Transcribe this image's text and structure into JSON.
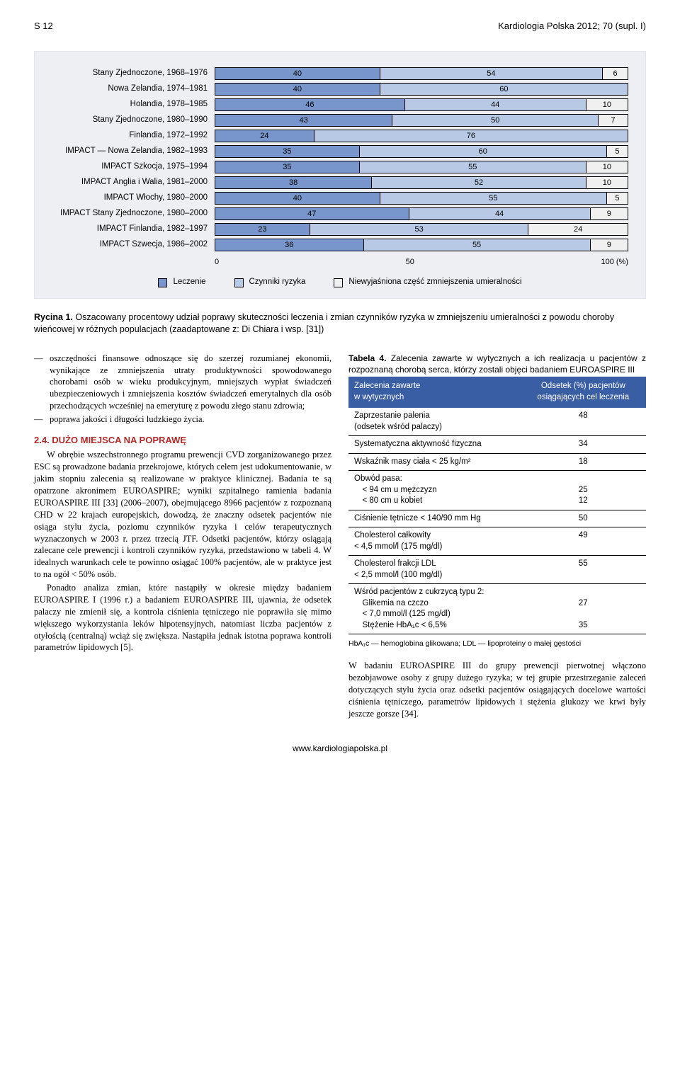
{
  "header": {
    "left": "S 12",
    "right": "Kardiologia Polska 2012; 70 (supl. I)"
  },
  "chart": {
    "type": "stacked-bar-horizontal",
    "background": "#edeff3",
    "bar_border": "#000000",
    "label_fontsize": 11.5,
    "value_fontsize": 11,
    "segment_colors": [
      "#7896cb",
      "#b8c9e6",
      "#f0f0f0"
    ],
    "rows": [
      {
        "label": "Stany Zjednoczone, 1968–1976",
        "values": [
          40,
          54,
          6
        ]
      },
      {
        "label": "Nowa Zelandia, 1974–1981",
        "values": [
          40,
          60
        ]
      },
      {
        "label": "Holandia, 1978–1985",
        "values": [
          46,
          44,
          10
        ]
      },
      {
        "label": "Stany Zjednoczone, 1980–1990",
        "values": [
          43,
          50,
          7
        ]
      },
      {
        "label": "Finlandia, 1972–1992",
        "values": [
          24,
          76
        ]
      },
      {
        "label": "IMPACT — Nowa Zelandia, 1982–1993",
        "values": [
          35,
          60,
          5
        ]
      },
      {
        "label": "IMPACT Szkocja, 1975–1994",
        "values": [
          35,
          55,
          10
        ]
      },
      {
        "label": "IMPACT Anglia i Walia, 1981–2000",
        "values": [
          38,
          52,
          10
        ]
      },
      {
        "label": "IMPACT Włochy, 1980–2000",
        "values": [
          40,
          55,
          5
        ]
      },
      {
        "label": "IMPACT Stany Zjednoczone, 1980–2000",
        "values": [
          47,
          44,
          9
        ]
      },
      {
        "label": "IMPACT Finlandia, 1982–1997",
        "values": [
          23,
          53,
          24
        ]
      },
      {
        "label": "IMPACT Szwecja, 1986–2002",
        "values": [
          36,
          55,
          9
        ]
      }
    ],
    "axis": {
      "ticks": [
        "0",
        "50",
        "100 (%)"
      ]
    },
    "legend": [
      {
        "label": "Leczenie",
        "color": "#7896cb"
      },
      {
        "label": "Czynniki ryzyka",
        "color": "#b8c9e6"
      },
      {
        "label": "Niewyjaśniona część zmniejszenia umieralności",
        "color": "#f0f0f0"
      }
    ]
  },
  "figure_caption": {
    "lead": "Rycina 1.",
    "text": "Oszacowany procentowy udział poprawy skuteczności leczenia i zmian czynników ryzyka w zmniejszeniu umieralności z powodu choroby wieńcowej w różnych populacjach (zaadaptowane z: Di Chiara i wsp. [31])"
  },
  "left_col": {
    "bullets": [
      "oszczędności finansowe odnoszące się do szerzej rozumianej ekonomii, wynikające ze zmniejszenia utraty produktywności spowodowanego chorobami osób w wieku produkcyjnym, mniejszych wypłat świadczeń ubezpieczeniowych i zmniejszenia kosztów świadczeń emerytalnych dla osób przechodzących wcześniej na emeryturę z powodu złego stanu zdrowia;",
      "poprawa jakości i długości ludzkiego życia."
    ],
    "section_heading": "2.4. DUŻO MIEJSCA NA POPRAWĘ",
    "p1": "W obrębie wszechstronnego programu prewencji CVD zorganizowanego przez ESC są prowadzone badania przekrojowe, których celem jest udokumentowanie, w jakim stopniu zalecenia są realizowane w praktyce klinicznej. Badania te są opatrzone akronimem EUROASPIRE; wyniki szpitalnego ramienia badania EUROASPIRE III [33] (2006–2007), obejmującego 8966 pacjentów z rozpoznaną CHD w 22 krajach europejskich, dowodzą, że znaczny odsetek pacjentów nie osiąga stylu życia, poziomu czynników ryzyka i celów terapeutycznych wyznaczonych w 2003 r. przez trzecią JTF. Odsetki pacjentów, którzy osiągają zalecane cele prewencji i kontroli czynników ryzyka, przedstawiono w tabeli 4. W idealnych warunkach cele te powinno osiągać 100% pacjentów, ale w praktyce jest to na ogół < 50% osób.",
    "p2": "Ponadto analiza zmian, które nastąpiły w okresie między badaniem EUROASPIRE I (1996 r.) a badaniem EUROASPIRE III, ujawnia, że odsetek palaczy nie zmienił się, a kontrola ciśnienia tętniczego nie poprawiła się mimo większego wykorzystania leków hipotensyjnych, natomiast liczba pacjentów z otyłością (centralną) wciąż się zwiększa. Nastąpiła jednak istotna poprawa kontroli parametrów lipidowych [5]."
  },
  "right_col": {
    "table_title_lead": "Tabela 4.",
    "table_title_text": "Zalecenia zawarte w wytycznych a ich realizacja u pacjentów z rozpoznaną chorobą serca, którzy zostali objęci badaniem EUROASPIRE III",
    "table": {
      "head_bg": "#3a5ea4",
      "head_color": "#ffffff",
      "columns": [
        "Zalecenia zawarte\nw wytycznych",
        "Odsetek (%) pacjentów\nosiągających cel leczenia"
      ],
      "rows": [
        {
          "label": "Zaprzestanie palenia\n(odsetek wśród palaczy)",
          "value": "48"
        },
        {
          "label": "Systematyczna aktywność fizyczna",
          "value": "34"
        },
        {
          "label": "Wskaźnik masy ciała < 25 kg/m²",
          "value": "18"
        },
        {
          "label": "Obwód pasa:\n < 94 cm u mężczyzn\n < 80 cm u kobiet",
          "value": "\n25\n12"
        },
        {
          "label": "Ciśnienie tętnicze < 140/90 mm Hg",
          "value": "50"
        },
        {
          "label": "Cholesterol całkowity\n< 4,5 mmol/l (175 mg/dl)",
          "value": "49"
        },
        {
          "label": "Cholesterol frakcji LDL\n< 2,5 mmol/l (100 mg/dl)",
          "value": "55"
        },
        {
          "label": "Wśród pacjentów z cukrzycą typu 2:\n Glikemia na czczo\n < 7,0 mmol/l (125 mg/dl)\n Stężenie HbA₁c < 6,5%",
          "value": "\n27\n\n35"
        }
      ],
      "footnote": "HbA₁c — hemoglobina glikowana; LDL — lipoproteiny o małej gęstości"
    },
    "p1": "W badaniu EUROASPIRE III do grupy prewencji pierwotnej włączono bezobjawowe osoby z grupy dużego ryzyka; w tej grupie przestrzeganie zaleceń dotyczących stylu życia oraz odsetki pacjentów osiągających docelowe wartości ciśnienia tętniczego, parametrów lipidowych i stężenia glukozy we krwi były jeszcze gorsze [34]."
  },
  "footer": {
    "link": "www.kardiologiapolska.pl"
  }
}
